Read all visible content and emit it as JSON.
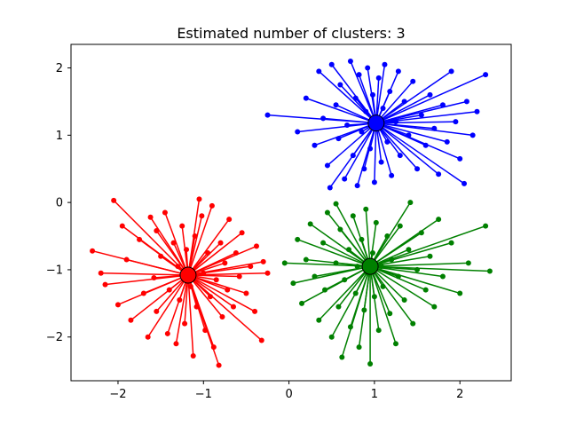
{
  "figure": {
    "background": "#ffffff"
  },
  "chart_data": {
    "type": "scatter",
    "title": "Estimated number of clusters: 3",
    "xlabel": "",
    "ylabel": "",
    "grid": false,
    "legend": null,
    "xlim": [
      -2.55,
      2.6
    ],
    "ylim": [
      -2.65,
      2.35
    ],
    "xticks": [
      -2,
      -1,
      0,
      1,
      2
    ],
    "yticks": [
      -2,
      -1,
      0,
      1,
      2
    ],
    "frame_color": "#000000",
    "marker_style": "dot",
    "line_width": 1.5,
    "clusters": [
      {
        "name": "cluster-blue",
        "color": "#0000ff",
        "center": [
          1.02,
          1.18
        ],
        "points": [
          [
            -0.25,
            1.3
          ],
          [
            0.1,
            1.05
          ],
          [
            0.2,
            1.55
          ],
          [
            0.3,
            0.85
          ],
          [
            0.35,
            1.95
          ],
          [
            0.4,
            1.25
          ],
          [
            0.45,
            0.55
          ],
          [
            0.5,
            2.05
          ],
          [
            0.55,
            1.45
          ],
          [
            0.58,
            0.95
          ],
          [
            0.6,
            1.75
          ],
          [
            0.65,
            0.35
          ],
          [
            0.68,
            1.15
          ],
          [
            0.72,
            2.1
          ],
          [
            0.75,
            0.7
          ],
          [
            0.78,
            1.55
          ],
          [
            0.8,
            0.25
          ],
          [
            0.82,
            1.9
          ],
          [
            0.85,
            1.05
          ],
          [
            0.88,
            0.5
          ],
          [
            0.9,
            1.35
          ],
          [
            0.92,
            2.0
          ],
          [
            0.95,
            0.8
          ],
          [
            0.98,
            1.6
          ],
          [
            1.0,
            0.3
          ],
          [
            1.02,
            1.1
          ],
          [
            1.05,
            1.85
          ],
          [
            1.08,
            0.6
          ],
          [
            1.1,
            1.4
          ],
          [
            1.12,
            2.05
          ],
          [
            1.15,
            0.9
          ],
          [
            1.18,
            1.65
          ],
          [
            1.2,
            0.4
          ],
          [
            1.25,
            1.2
          ],
          [
            1.28,
            1.95
          ],
          [
            1.3,
            0.7
          ],
          [
            1.35,
            1.5
          ],
          [
            1.4,
            1.0
          ],
          [
            1.45,
            1.8
          ],
          [
            1.5,
            0.5
          ],
          [
            1.55,
            1.3
          ],
          [
            1.6,
            0.85
          ],
          [
            1.65,
            1.6
          ],
          [
            1.7,
            1.1
          ],
          [
            1.75,
            0.42
          ],
          [
            1.8,
            1.45
          ],
          [
            1.85,
            0.9
          ],
          [
            1.9,
            1.95
          ],
          [
            1.95,
            1.2
          ],
          [
            2.0,
            0.65
          ],
          [
            2.05,
            0.28
          ],
          [
            2.08,
            1.5
          ],
          [
            2.15,
            1.0
          ],
          [
            2.2,
            1.35
          ],
          [
            2.3,
            1.9
          ],
          [
            0.48,
            0.22
          ]
        ]
      },
      {
        "name": "cluster-green",
        "color": "#008000",
        "center": [
          0.95,
          -0.95
        ],
        "points": [
          [
            -0.05,
            -0.9
          ],
          [
            0.05,
            -1.2
          ],
          [
            0.1,
            -0.55
          ],
          [
            0.15,
            -1.5
          ],
          [
            0.2,
            -0.85
          ],
          [
            0.25,
            -0.32
          ],
          [
            0.3,
            -1.1
          ],
          [
            0.35,
            -1.75
          ],
          [
            0.4,
            -0.6
          ],
          [
            0.42,
            -1.3
          ],
          [
            0.45,
            -0.15
          ],
          [
            0.5,
            -2.0
          ],
          [
            0.55,
            -0.02
          ],
          [
            0.55,
            -0.9
          ],
          [
            0.58,
            -1.55
          ],
          [
            0.6,
            -0.4
          ],
          [
            0.62,
            -2.3
          ],
          [
            0.65,
            -1.15
          ],
          [
            0.7,
            -0.7
          ],
          [
            0.72,
            -1.85
          ],
          [
            0.75,
            -0.2
          ],
          [
            0.78,
            -1.35
          ],
          [
            0.8,
            -0.95
          ],
          [
            0.82,
            -2.15
          ],
          [
            0.85,
            -0.55
          ],
          [
            0.88,
            -1.6
          ],
          [
            0.9,
            -0.1
          ],
          [
            0.92,
            -1.05
          ],
          [
            0.95,
            -2.4
          ],
          [
            0.98,
            -0.75
          ],
          [
            1.0,
            -1.4
          ],
          [
            1.02,
            -0.3
          ],
          [
            1.05,
            -1.9
          ],
          [
            1.08,
            -0.95
          ],
          [
            1.1,
            -1.25
          ],
          [
            1.15,
            -0.5
          ],
          [
            1.18,
            -1.65
          ],
          [
            1.2,
            -0.85
          ],
          [
            1.25,
            -2.1
          ],
          [
            1.28,
            -1.1
          ],
          [
            1.3,
            -0.35
          ],
          [
            1.35,
            -1.45
          ],
          [
            1.4,
            -0.7
          ],
          [
            1.42,
            0.0
          ],
          [
            1.45,
            -1.8
          ],
          [
            1.5,
            -1.0
          ],
          [
            1.55,
            -0.45
          ],
          [
            1.6,
            -1.3
          ],
          [
            1.65,
            -0.8
          ],
          [
            1.7,
            -1.55
          ],
          [
            1.75,
            -0.25
          ],
          [
            1.8,
            -1.1
          ],
          [
            1.9,
            -0.6
          ],
          [
            2.0,
            -1.35
          ],
          [
            2.1,
            -0.9
          ],
          [
            2.3,
            -0.35
          ],
          [
            2.35,
            -1.02
          ]
        ]
      },
      {
        "name": "cluster-red",
        "color": "#ff0000",
        "center": [
          -1.18,
          -1.08
        ],
        "points": [
          [
            -2.3,
            -0.72
          ],
          [
            -2.2,
            -1.05
          ],
          [
            -2.15,
            -1.22
          ],
          [
            -2.05,
            0.03
          ],
          [
            -2.0,
            -1.52
          ],
          [
            -1.95,
            -0.35
          ],
          [
            -1.9,
            -0.85
          ],
          [
            -1.85,
            -1.75
          ],
          [
            -1.75,
            -0.55
          ],
          [
            -1.7,
            -1.35
          ],
          [
            -1.65,
            -2.0
          ],
          [
            -1.62,
            -0.22
          ],
          [
            -1.58,
            -1.12
          ],
          [
            -1.55,
            -1.62
          ],
          [
            -1.55,
            -0.42
          ],
          [
            -1.5,
            -0.8
          ],
          [
            -1.45,
            -0.15
          ],
          [
            -1.42,
            -1.95
          ],
          [
            -1.4,
            -1.3
          ],
          [
            -1.35,
            -0.6
          ],
          [
            -1.32,
            -2.1
          ],
          [
            -1.3,
            -0.95
          ],
          [
            -1.28,
            -1.45
          ],
          [
            -1.25,
            -0.35
          ],
          [
            -1.22,
            -1.8
          ],
          [
            -1.2,
            -0.7
          ],
          [
            -1.15,
            -1.25
          ],
          [
            -1.12,
            -2.28
          ],
          [
            -1.1,
            -0.5
          ],
          [
            -1.08,
            -1.55
          ],
          [
            -1.05,
            0.05
          ],
          [
            -1.02,
            -0.2
          ],
          [
            -1.0,
            -1.05
          ],
          [
            -0.98,
            -1.9
          ],
          [
            -0.95,
            -0.75
          ],
          [
            -0.92,
            -1.4
          ],
          [
            -0.9,
            -0.05
          ],
          [
            -0.88,
            -2.15
          ],
          [
            -0.85,
            -1.15
          ],
          [
            -0.82,
            -2.42
          ],
          [
            -0.8,
            -0.6
          ],
          [
            -0.78,
            -1.7
          ],
          [
            -0.75,
            -0.9
          ],
          [
            -0.72,
            -1.3
          ],
          [
            -0.7,
            -0.25
          ],
          [
            -0.65,
            -1.55
          ],
          [
            -0.62,
            -0.75
          ],
          [
            -0.58,
            -1.1
          ],
          [
            -0.55,
            -0.45
          ],
          [
            -0.5,
            -1.35
          ],
          [
            -0.45,
            -0.95
          ],
          [
            -0.4,
            -1.62
          ],
          [
            -0.38,
            -0.65
          ],
          [
            -0.32,
            -2.05
          ],
          [
            -0.3,
            -0.88
          ],
          [
            -0.25,
            -1.05
          ]
        ]
      }
    ]
  }
}
